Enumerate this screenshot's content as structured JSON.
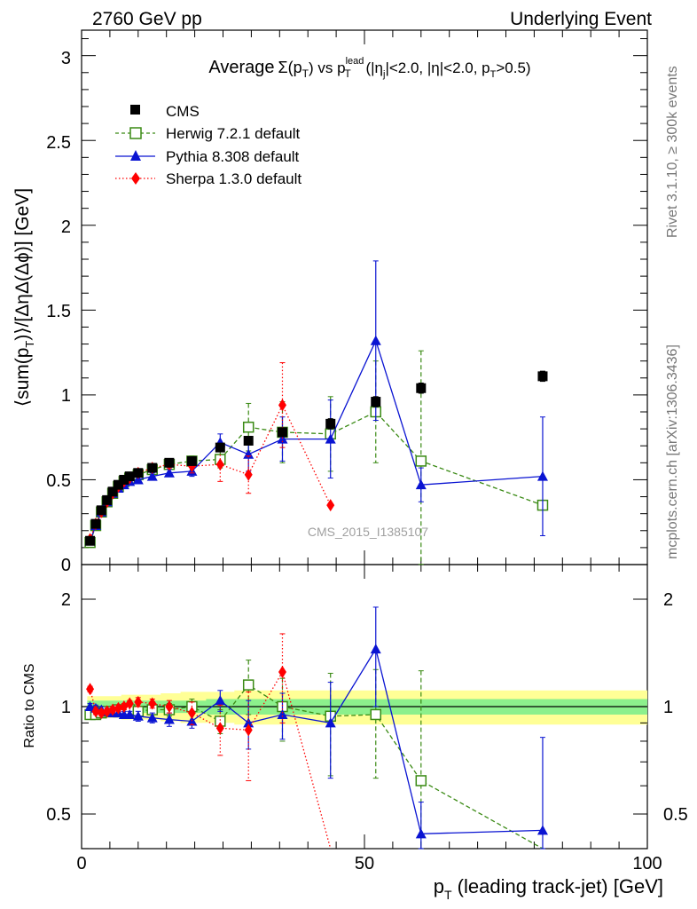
{
  "header": {
    "left": "2760 GeV pp",
    "right": "Underlying Event"
  },
  "title": {
    "pre": "Average",
    "sigma": "Σ(p",
    "sigma_sub": "T",
    "sigma_close": ")",
    "vs": " vs p",
    "vs_sub": "T",
    "vs_sup": "lead",
    "cuts": " (|η",
    "cuts_sub_j": "j",
    "cuts2": "|<2.0, |η|<2.0, p",
    "cuts_sub_T": "T",
    "cuts3": ">0.5)"
  },
  "side_labels": {
    "rivet": "Rivet 3.1.10, ≥ 300k events",
    "mcplots": "mcplots.cern.ch [arXiv:1306.3436]"
  },
  "watermark": "CMS_2015_I1385107",
  "axes": {
    "ylabel_top": "⟨sum(p",
    "ylabel_top_sub": "T",
    "ylabel_top_rest": ")⟩/[ΔηΔ(Δϕ)] [GeV]",
    "ylabel_ratio": "Ratio to CMS",
    "xlabel_pre": "p",
    "xlabel_sub": "T",
    "xlabel_rest": " (leading track-jet) [GeV]",
    "x_ticks": [
      "0",
      "50",
      "100"
    ],
    "y_ticks_top": [
      "0",
      "0.5",
      "1",
      "1.5",
      "2",
      "2.5",
      "3"
    ],
    "y_ticks_ratio": [
      "0.5",
      "1",
      "2"
    ],
    "y_ticks_ratio_right": [
      "0.5",
      "1",
      "2"
    ]
  },
  "colors": {
    "cms": "#000000",
    "herwig": "#3a8a14",
    "pythia": "#0a14d2",
    "sherpa": "#ff0000",
    "band_inner": "#8cf08c",
    "band_outer": "#ffff96"
  },
  "chart_data": {
    "type": "scatter",
    "xlabel": "pT (leading track-jet) [GeV]",
    "ylabel": "⟨sum(pT)⟩/[ΔηΔ(Δϕ)] [GeV]",
    "ratio_ylabel": "Ratio to CMS",
    "xlim": [
      0,
      100
    ],
    "ylim": [
      0,
      3.15
    ],
    "ratio_ylim": [
      0.35,
      2.3
    ],
    "ratio_scale": "log",
    "legend_position": "top-left",
    "x": [
      1.5,
      2.5,
      3.5,
      4.5,
      5.5,
      6.5,
      7.5,
      8.5,
      10,
      12.5,
      15.5,
      19.5,
      24.5,
      29.5,
      35.5,
      44,
      52,
      60,
      81.5
    ],
    "series": [
      {
        "name": "CMS",
        "marker": "square",
        "y": [
          0.14,
          0.24,
          0.32,
          0.38,
          0.43,
          0.47,
          0.5,
          0.52,
          0.54,
          0.57,
          0.6,
          0.61,
          0.69,
          0.73,
          0.78,
          0.83,
          0.96,
          1.04,
          1.11
        ],
        "yerr": [
          0.01,
          0.01,
          0.01,
          0.01,
          0.01,
          0.01,
          0.01,
          0.01,
          0.01,
          0.01,
          0.01,
          0.01,
          0.02,
          0.02,
          0.02,
          0.03,
          0.03,
          0.03,
          0.03
        ],
        "ratio": [
          1,
          1,
          1,
          1,
          1,
          1,
          1,
          1,
          1,
          1,
          1,
          1,
          1,
          1,
          1,
          1,
          1,
          1,
          1
        ]
      },
      {
        "name": "Herwig 7.2.1 default",
        "marker": "open-square",
        "linestyle": "dashed",
        "y": [
          0.13,
          0.23,
          0.31,
          0.37,
          0.42,
          0.46,
          0.49,
          0.51,
          0.53,
          0.56,
          0.59,
          0.61,
          0.62,
          0.81,
          0.78,
          0.77,
          0.9,
          0.61,
          0.35
        ],
        "yerr": [
          0.01,
          0.01,
          0.01,
          0.01,
          0.01,
          0.01,
          0.01,
          0.01,
          0.02,
          0.02,
          0.02,
          0.03,
          0.05,
          0.14,
          0.18,
          0.22,
          0.3,
          0.65,
          0.0
        ],
        "ratio": [
          0.95,
          0.95,
          0.96,
          0.97,
          0.97,
          0.98,
          0.98,
          0.98,
          0.97,
          0.98,
          0.98,
          1.0,
          0.91,
          1.15,
          1.0,
          0.94,
          0.95,
          0.62,
          0.31
        ],
        "ratio_err": [
          0.02,
          0.02,
          0.02,
          0.02,
          0.02,
          0.02,
          0.02,
          0.02,
          0.03,
          0.03,
          0.04,
          0.05,
          0.07,
          0.2,
          0.2,
          0.3,
          0.32,
          0.64,
          0.0
        ]
      },
      {
        "name": "Pythia 8.308 default",
        "marker": "triangle",
        "linestyle": "solid",
        "y": [
          0.14,
          0.23,
          0.31,
          0.37,
          0.42,
          0.45,
          0.47,
          0.49,
          0.5,
          0.52,
          0.54,
          0.55,
          0.72,
          0.65,
          0.74,
          0.74,
          1.32,
          0.47,
          0.52
        ],
        "yerr": [
          0.01,
          0.01,
          0.01,
          0.01,
          0.01,
          0.01,
          0.01,
          0.01,
          0.02,
          0.02,
          0.02,
          0.03,
          0.05,
          0.1,
          0.13,
          0.23,
          0.47,
          0.1,
          0.35
        ],
        "ratio": [
          1.0,
          0.99,
          0.98,
          0.97,
          0.96,
          0.96,
          0.95,
          0.95,
          0.94,
          0.93,
          0.92,
          0.91,
          1.04,
          0.9,
          0.95,
          0.9,
          1.45,
          0.44,
          0.45
        ],
        "ratio_err": [
          0.02,
          0.02,
          0.02,
          0.02,
          0.02,
          0.02,
          0.02,
          0.02,
          0.03,
          0.03,
          0.04,
          0.04,
          0.07,
          0.14,
          0.14,
          0.27,
          0.45,
          0.1,
          0.37
        ]
      },
      {
        "name": "Sherpa 1.3.0 default",
        "marker": "diamond",
        "linestyle": "dotted",
        "y": [
          0.15,
          0.24,
          0.31,
          0.37,
          0.42,
          0.46,
          0.49,
          0.51,
          0.54,
          0.57,
          0.59,
          0.58,
          0.59,
          0.53,
          0.94,
          0.35
        ],
        "yerr": [
          0.01,
          0.01,
          0.01,
          0.01,
          0.01,
          0.01,
          0.01,
          0.01,
          0.02,
          0.02,
          0.02,
          0.04,
          0.1,
          0.11,
          0.25,
          0.0
        ],
        "ratio": [
          1.12,
          0.97,
          0.96,
          0.97,
          0.98,
          0.99,
          1.0,
          1.02,
          1.03,
          1.02,
          1.0,
          0.96,
          0.87,
          0.86,
          1.25,
          0.37
        ],
        "ratio_err": [
          0.02,
          0.02,
          0.02,
          0.02,
          0.02,
          0.02,
          0.02,
          0.02,
          0.03,
          0.03,
          0.04,
          0.07,
          0.14,
          0.24,
          0.35,
          0.0
        ]
      }
    ],
    "cms_band_inner": [
      0.04,
      0.04,
      0.04,
      0.04,
      0.04,
      0.04,
      0.04,
      0.04,
      0.04,
      0.04,
      0.04,
      0.04,
      0.05,
      0.05,
      0.05,
      0.05,
      0.05,
      0.05,
      0.05
    ],
    "cms_band_outer": [
      0.07,
      0.07,
      0.07,
      0.07,
      0.07,
      0.07,
      0.08,
      0.08,
      0.08,
      0.08,
      0.09,
      0.1,
      0.1,
      0.11,
      0.11,
      0.11,
      0.11,
      0.11,
      0.11
    ]
  }
}
